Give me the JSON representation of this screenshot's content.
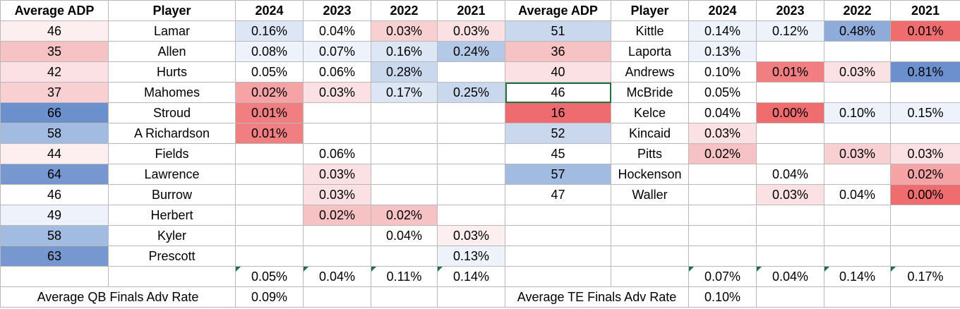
{
  "sheet": {
    "headers": [
      "Average ADP",
      "Player",
      "2024",
      "2023",
      "2022",
      "2021",
      "Average ADP",
      "Player",
      "2024",
      "2023",
      "2022",
      "2021"
    ],
    "rows": [
      [
        "46",
        "Lamar",
        "0.16%",
        "0.04%",
        "0.03%",
        "0.03%",
        "51",
        "Kittle",
        "0.14%",
        "0.12%",
        "0.48%",
        "0.01%"
      ],
      [
        "35",
        "Allen",
        "0.08%",
        "0.07%",
        "0.16%",
        "0.24%",
        "36",
        "Laporta",
        "0.13%",
        "",
        "",
        ""
      ],
      [
        "42",
        "Hurts",
        "0.05%",
        "0.06%",
        "0.28%",
        "",
        "40",
        "Andrews",
        "0.10%",
        "0.01%",
        "0.03%",
        "0.81%"
      ],
      [
        "37",
        "Mahomes",
        "0.02%",
        "0.03%",
        "0.17%",
        "0.25%",
        "46",
        "McBride",
        "0.05%",
        "",
        "",
        ""
      ],
      [
        "66",
        "Stroud",
        "0.01%",
        "",
        "",
        "",
        "16",
        "Kelce",
        "0.04%",
        "0.00%",
        "0.10%",
        "0.15%"
      ],
      [
        "58",
        "A Richardson",
        "0.01%",
        "",
        "",
        "",
        "52",
        "Kincaid",
        "0.03%",
        "",
        "",
        ""
      ],
      [
        "44",
        "Fields",
        "",
        "0.06%",
        "",
        "",
        "45",
        "Pitts",
        "0.02%",
        "",
        "0.03%",
        "0.03%"
      ],
      [
        "64",
        "Lawrence",
        "",
        "0.03%",
        "",
        "",
        "57",
        "Hockenson",
        "",
        "0.04%",
        "",
        "0.02%"
      ],
      [
        "46",
        "Burrow",
        "",
        "0.03%",
        "",
        "",
        "47",
        "Waller",
        "",
        "0.03%",
        "0.04%",
        "0.00%"
      ],
      [
        "49",
        "Herbert",
        "",
        "0.02%",
        "0.02%",
        "",
        "",
        "",
        "",
        "",
        "",
        ""
      ],
      [
        "58",
        "Kyler",
        "",
        "",
        "0.04%",
        "0.03%",
        "",
        "",
        "",
        "",
        "",
        ""
      ],
      [
        "63",
        "Prescott",
        "",
        "",
        "",
        "0.13%",
        "",
        "",
        "",
        "",
        "",
        ""
      ],
      [
        "",
        "",
        "0.05%",
        "0.04%",
        "0.11%",
        "0.14%",
        "",
        "",
        "0.07%",
        "0.04%",
        "0.14%",
        "0.17%"
      ]
    ],
    "footer": {
      "qb_label": "Average QB Finals Adv Rate",
      "qb_value": "0.09%",
      "te_label": "Average TE Finals Adv Rate",
      "te_value": "0.10%"
    },
    "colors": {
      "grid_border": "#b9b9b9",
      "selection": "#1e7145",
      "scale_blue_strong": "#6c8fcd",
      "scale_red_strong": "#f06d6f"
    }
  }
}
